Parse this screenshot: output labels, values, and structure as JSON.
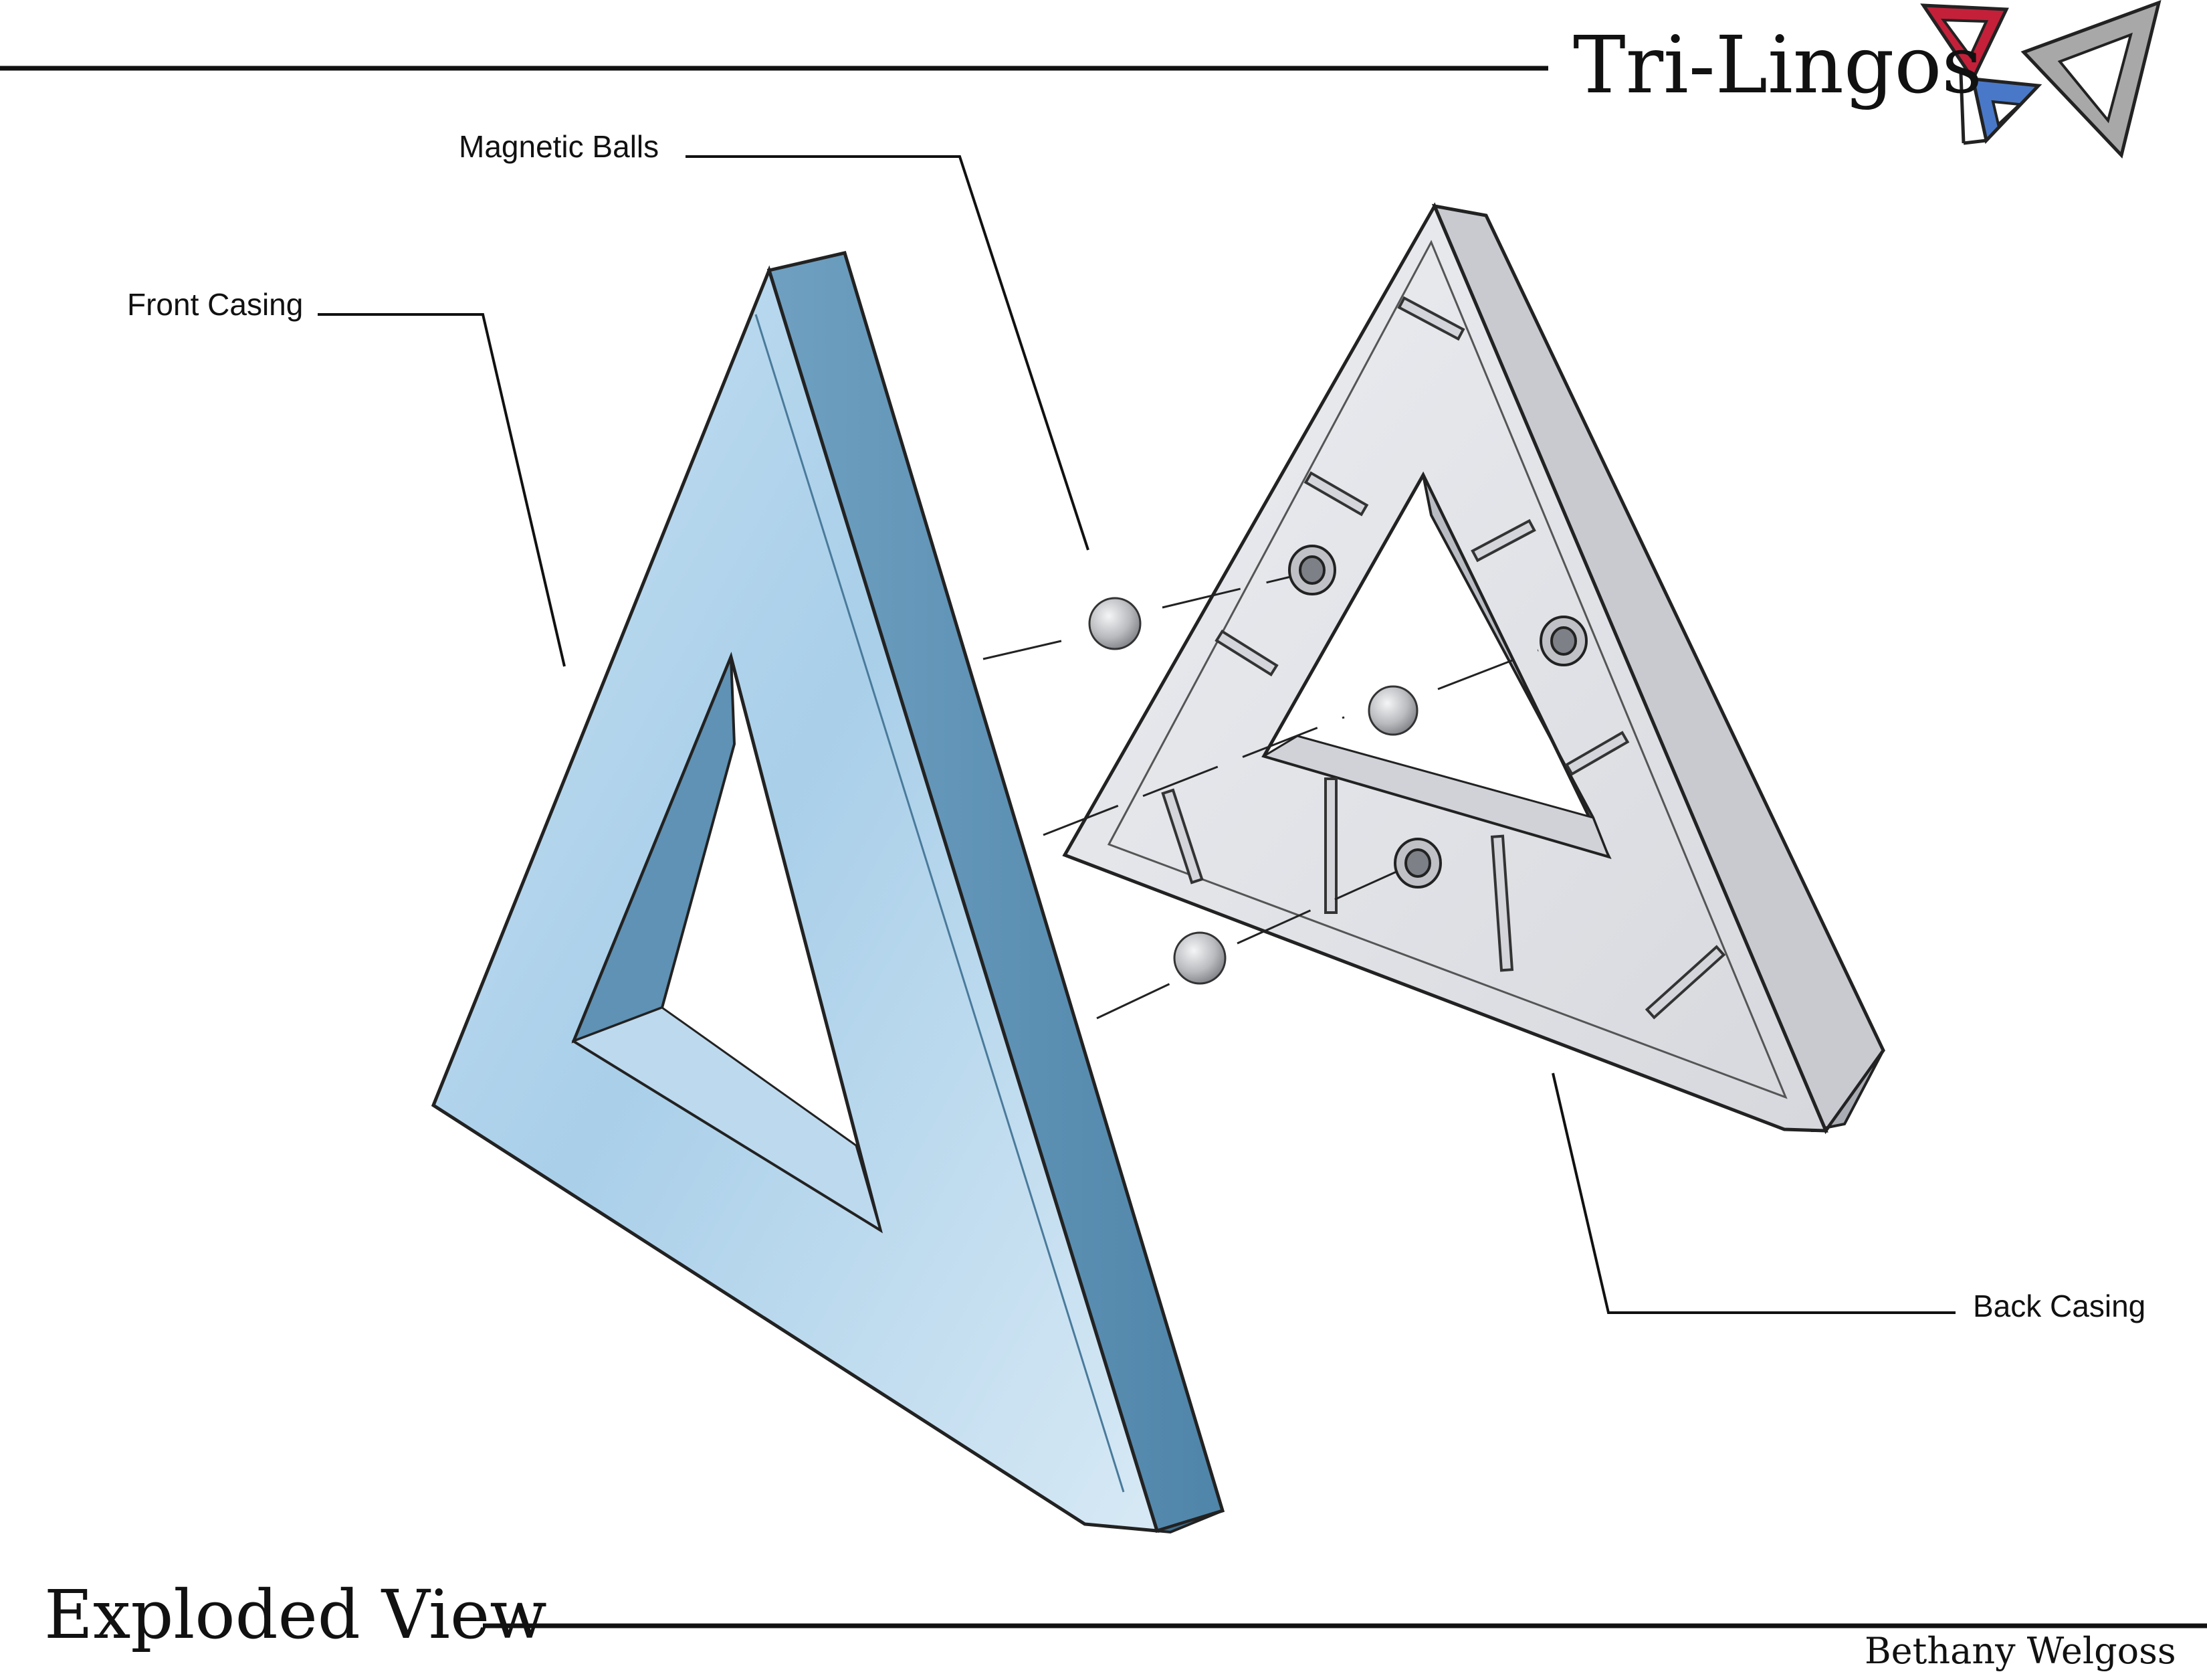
{
  "header": {
    "brand_title": "Tri-Lingos",
    "logo": {
      "icon": "tri-lingos-logo-icon",
      "colors": {
        "red": "#c4203a",
        "blue": "#4a78c8",
        "gray": "#a8a8a8"
      }
    }
  },
  "callouts": {
    "magnetic_balls": "Magnetic Balls",
    "front_casing": "Front Casing",
    "back_casing": "Back Casing"
  },
  "footer": {
    "view_title": "Exploded View",
    "author": "Bethany Welgoss"
  },
  "parts": {
    "front_casing": {
      "icon": "front-casing-triangle-icon",
      "color": "#a9cfe9",
      "edge_color": "#5f92b4"
    },
    "back_casing": {
      "icon": "back-casing-triangle-icon",
      "color": "#e3e5ea",
      "edge_color": "#aeb1b8"
    },
    "magnetic_ball": {
      "icon": "magnetic-ball-icon",
      "color": "#c6c8cc"
    }
  }
}
